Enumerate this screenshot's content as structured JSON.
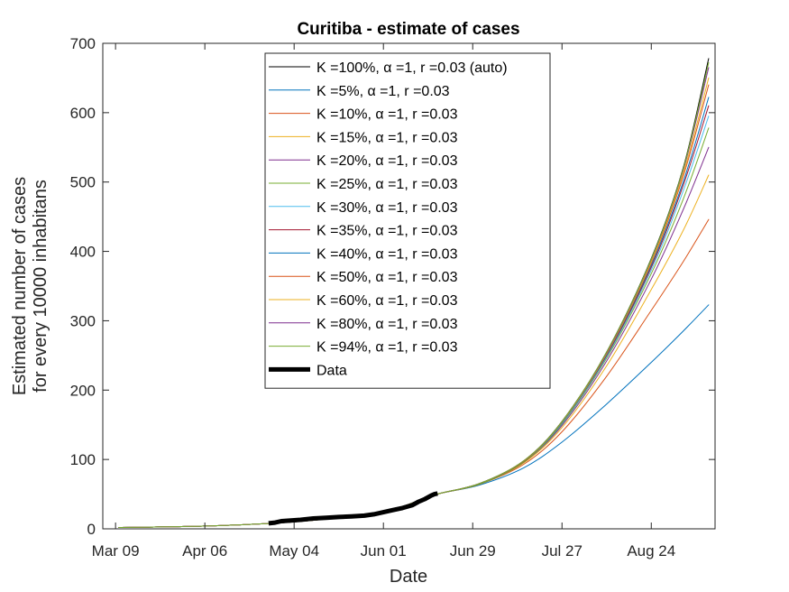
{
  "chart_data": {
    "type": "line",
    "title": "Curitiba - estimate of cases",
    "xlabel": "Date",
    "ylabel_line1": "Estimated number of cases",
    "ylabel_line2": "for every 10000 inhabitans",
    "xlim": [
      "2020-03-05",
      "2020-09-13"
    ],
    "ylim": [
      0,
      700
    ],
    "x_ticks": [
      {
        "date": "2020-03-09",
        "label": "Mar 09"
      },
      {
        "date": "2020-04-06",
        "label": "Apr 06"
      },
      {
        "date": "2020-05-04",
        "label": "May 04"
      },
      {
        "date": "2020-06-01",
        "label": "Jun 01"
      },
      {
        "date": "2020-06-29",
        "label": "Jun 29"
      },
      {
        "date": "2020-07-27",
        "label": "Jul 27"
      },
      {
        "date": "2020-08-24",
        "label": "Aug 24"
      }
    ],
    "y_ticks": [
      0,
      100,
      200,
      300,
      400,
      500,
      600,
      700
    ],
    "grid": false,
    "legend_position": "top-center",
    "series": [
      {
        "name": "K =100%, α =1, r =0.03 (auto)",
        "color": "#000000",
        "width": 1,
        "points": [
          [
            "2020-03-10",
            2
          ],
          [
            "2020-04-06",
            4
          ],
          [
            "2020-05-04",
            10
          ],
          [
            "2020-06-01",
            25
          ],
          [
            "2020-06-17",
            49
          ],
          [
            "2020-07-01",
            65
          ],
          [
            "2020-07-15",
            98
          ],
          [
            "2020-07-27",
            155
          ],
          [
            "2020-08-10",
            255
          ],
          [
            "2020-08-24",
            390
          ],
          [
            "2020-09-03",
            520
          ],
          [
            "2020-09-11",
            678
          ]
        ]
      },
      {
        "name": "K =5%, α =1, r =0.03",
        "color": "#0072bd",
        "width": 1,
        "points": [
          [
            "2020-03-10",
            2
          ],
          [
            "2020-04-06",
            4
          ],
          [
            "2020-05-04",
            10
          ],
          [
            "2020-06-01",
            25
          ],
          [
            "2020-06-17",
            49
          ],
          [
            "2020-07-01",
            63
          ],
          [
            "2020-07-15",
            88
          ],
          [
            "2020-07-27",
            125
          ],
          [
            "2020-08-10",
            180
          ],
          [
            "2020-08-24",
            240
          ],
          [
            "2020-09-03",
            285
          ],
          [
            "2020-09-11",
            323
          ]
        ]
      },
      {
        "name": "K =10%, α =1, r =0.03",
        "color": "#d95319",
        "width": 1,
        "points": [
          [
            "2020-03-10",
            2
          ],
          [
            "2020-04-06",
            4
          ],
          [
            "2020-05-04",
            10
          ],
          [
            "2020-06-01",
            25
          ],
          [
            "2020-06-17",
            49
          ],
          [
            "2020-07-01",
            64
          ],
          [
            "2020-07-15",
            93
          ],
          [
            "2020-07-27",
            140
          ],
          [
            "2020-08-10",
            220
          ],
          [
            "2020-08-24",
            315
          ],
          [
            "2020-09-03",
            385
          ],
          [
            "2020-09-11",
            446
          ]
        ]
      },
      {
        "name": "K =15%, α =1, r =0.03",
        "color": "#edb120",
        "width": 1,
        "points": [
          [
            "2020-03-10",
            2
          ],
          [
            "2020-04-06",
            4
          ],
          [
            "2020-05-04",
            10
          ],
          [
            "2020-06-01",
            25
          ],
          [
            "2020-06-17",
            49
          ],
          [
            "2020-07-01",
            64
          ],
          [
            "2020-07-15",
            95
          ],
          [
            "2020-07-27",
            146
          ],
          [
            "2020-08-10",
            235
          ],
          [
            "2020-08-24",
            345
          ],
          [
            "2020-09-03",
            430
          ],
          [
            "2020-09-11",
            510
          ]
        ]
      },
      {
        "name": "K =20%, α =1, r =0.03",
        "color": "#7e2f8e",
        "width": 1,
        "points": [
          [
            "2020-03-10",
            2
          ],
          [
            "2020-04-06",
            4
          ],
          [
            "2020-05-04",
            10
          ],
          [
            "2020-06-01",
            25
          ],
          [
            "2020-06-17",
            49
          ],
          [
            "2020-07-01",
            64
          ],
          [
            "2020-07-15",
            96
          ],
          [
            "2020-07-27",
            149
          ],
          [
            "2020-08-10",
            242
          ],
          [
            "2020-08-24",
            360
          ],
          [
            "2020-09-03",
            460
          ],
          [
            "2020-09-11",
            550
          ]
        ]
      },
      {
        "name": "K =25%, α =1, r =0.03",
        "color": "#77ac30",
        "width": 1,
        "points": [
          [
            "2020-03-10",
            2
          ],
          [
            "2020-04-06",
            4
          ],
          [
            "2020-05-04",
            10
          ],
          [
            "2020-06-01",
            25
          ],
          [
            "2020-06-17",
            49
          ],
          [
            "2020-07-01",
            64
          ],
          [
            "2020-07-15",
            96
          ],
          [
            "2020-07-27",
            151
          ],
          [
            "2020-08-10",
            246
          ],
          [
            "2020-08-24",
            368
          ],
          [
            "2020-09-03",
            475
          ],
          [
            "2020-09-11",
            578
          ]
        ]
      },
      {
        "name": "K =30%, α =1, r =0.03",
        "color": "#4dbeee",
        "width": 1,
        "points": [
          [
            "2020-03-10",
            2
          ],
          [
            "2020-04-06",
            4
          ],
          [
            "2020-05-04",
            10
          ],
          [
            "2020-06-01",
            25
          ],
          [
            "2020-06-17",
            49
          ],
          [
            "2020-07-01",
            65
          ],
          [
            "2020-07-15",
            97
          ],
          [
            "2020-07-27",
            152
          ],
          [
            "2020-08-10",
            248
          ],
          [
            "2020-08-24",
            373
          ],
          [
            "2020-09-03",
            487
          ],
          [
            "2020-09-11",
            595
          ]
        ]
      },
      {
        "name": "K =35%, α =1, r =0.03",
        "color": "#a2142f",
        "width": 1,
        "points": [
          [
            "2020-03-10",
            2
          ],
          [
            "2020-04-06",
            4
          ],
          [
            "2020-05-04",
            10
          ],
          [
            "2020-06-01",
            25
          ],
          [
            "2020-06-17",
            49
          ],
          [
            "2020-07-01",
            65
          ],
          [
            "2020-07-15",
            97
          ],
          [
            "2020-07-27",
            153
          ],
          [
            "2020-08-10",
            250
          ],
          [
            "2020-08-24",
            377
          ],
          [
            "2020-09-03",
            495
          ],
          [
            "2020-09-11",
            610
          ]
        ]
      },
      {
        "name": "K =40%, α =1, r =0.03",
        "color": "#0072bd",
        "width": 1,
        "points": [
          [
            "2020-03-10",
            2
          ],
          [
            "2020-04-06",
            4
          ],
          [
            "2020-05-04",
            10
          ],
          [
            "2020-06-01",
            25
          ],
          [
            "2020-06-17",
            49
          ],
          [
            "2020-07-01",
            65
          ],
          [
            "2020-07-15",
            97
          ],
          [
            "2020-07-27",
            153
          ],
          [
            "2020-08-10",
            251
          ],
          [
            "2020-08-24",
            380
          ],
          [
            "2020-09-03",
            500
          ],
          [
            "2020-09-11",
            622
          ]
        ]
      },
      {
        "name": "K =50%, α =1, r =0.03",
        "color": "#d95319",
        "width": 1,
        "points": [
          [
            "2020-03-10",
            2
          ],
          [
            "2020-04-06",
            4
          ],
          [
            "2020-05-04",
            10
          ],
          [
            "2020-06-01",
            25
          ],
          [
            "2020-06-17",
            49
          ],
          [
            "2020-07-01",
            65
          ],
          [
            "2020-07-15",
            97
          ],
          [
            "2020-07-27",
            154
          ],
          [
            "2020-08-10",
            252
          ],
          [
            "2020-08-24",
            383
          ],
          [
            "2020-09-03",
            508
          ],
          [
            "2020-09-11",
            640
          ]
        ]
      },
      {
        "name": "K =60%, α =1, r =0.03",
        "color": "#edb120",
        "width": 1,
        "points": [
          [
            "2020-03-10",
            2
          ],
          [
            "2020-04-06",
            4
          ],
          [
            "2020-05-04",
            10
          ],
          [
            "2020-06-01",
            25
          ],
          [
            "2020-06-17",
            49
          ],
          [
            "2020-07-01",
            65
          ],
          [
            "2020-07-15",
            98
          ],
          [
            "2020-07-27",
            154
          ],
          [
            "2020-08-10",
            253
          ],
          [
            "2020-08-24",
            385
          ],
          [
            "2020-09-03",
            512
          ],
          [
            "2020-09-11",
            650
          ]
        ]
      },
      {
        "name": "K =80%, α =1, r =0.03",
        "color": "#7e2f8e",
        "width": 1,
        "points": [
          [
            "2020-03-10",
            2
          ],
          [
            "2020-04-06",
            4
          ],
          [
            "2020-05-04",
            10
          ],
          [
            "2020-06-01",
            25
          ],
          [
            "2020-06-17",
            49
          ],
          [
            "2020-07-01",
            65
          ],
          [
            "2020-07-15",
            98
          ],
          [
            "2020-07-27",
            155
          ],
          [
            "2020-08-10",
            254
          ],
          [
            "2020-08-24",
            388
          ],
          [
            "2020-09-03",
            517
          ],
          [
            "2020-09-11",
            665
          ]
        ]
      },
      {
        "name": "K =94%, α =1, r =0.03",
        "color": "#77ac30",
        "width": 1,
        "points": [
          [
            "2020-03-10",
            2
          ],
          [
            "2020-04-06",
            4
          ],
          [
            "2020-05-04",
            10
          ],
          [
            "2020-06-01",
            25
          ],
          [
            "2020-06-17",
            49
          ],
          [
            "2020-07-01",
            65
          ],
          [
            "2020-07-15",
            98
          ],
          [
            "2020-07-27",
            155
          ],
          [
            "2020-08-10",
            255
          ],
          [
            "2020-08-24",
            389
          ],
          [
            "2020-09-03",
            519
          ],
          [
            "2020-09-11",
            672
          ]
        ]
      },
      {
        "name": "Data",
        "color": "#000000",
        "width": 5,
        "points": [
          [
            "2020-04-26",
            8
          ],
          [
            "2020-04-28",
            9
          ],
          [
            "2020-04-30",
            11
          ],
          [
            "2020-05-03",
            12
          ],
          [
            "2020-05-06",
            13
          ],
          [
            "2020-05-10",
            15
          ],
          [
            "2020-05-14",
            16
          ],
          [
            "2020-05-18",
            17
          ],
          [
            "2020-05-22",
            18
          ],
          [
            "2020-05-26",
            19
          ],
          [
            "2020-05-29",
            21
          ],
          [
            "2020-06-01",
            24
          ],
          [
            "2020-06-04",
            27
          ],
          [
            "2020-06-07",
            30
          ],
          [
            "2020-06-10",
            34
          ],
          [
            "2020-06-12",
            39
          ],
          [
            "2020-06-14",
            43
          ],
          [
            "2020-06-16",
            48
          ],
          [
            "2020-06-17",
            50
          ],
          [
            "2020-06-18",
            51
          ]
        ]
      }
    ]
  }
}
